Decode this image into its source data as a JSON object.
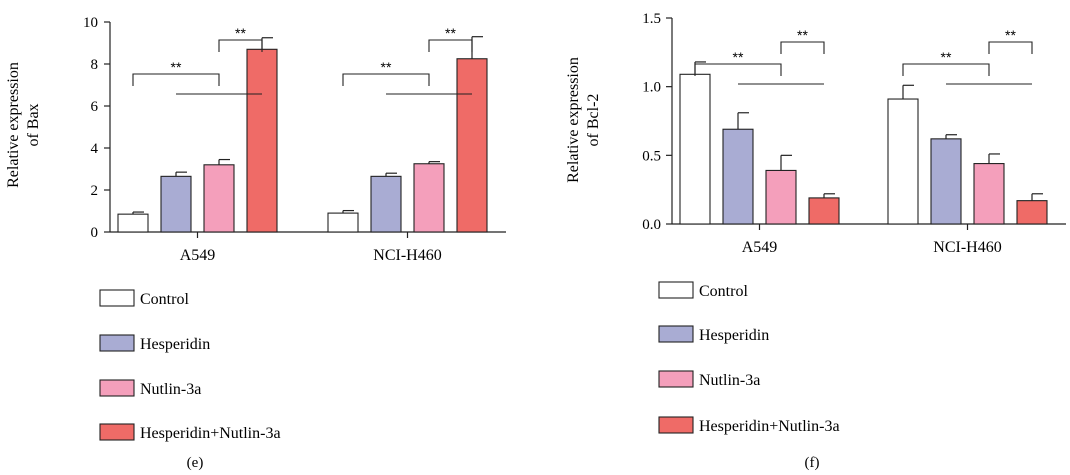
{
  "chart_data": [
    {
      "type": "bar",
      "panel_label": "(e)",
      "ylabel": "Relative expression of Bax",
      "ylabel_lines": [
        "Relative expression",
        "of Bax"
      ],
      "ylim": [
        0,
        10
      ],
      "yticks": [
        "0",
        "2",
        "4",
        "6",
        "8",
        "10"
      ],
      "categories": [
        "A549",
        "NCI-H460"
      ],
      "series": [
        {
          "name": "Control",
          "values": [
            0.85,
            0.9
          ],
          "errors": [
            0.1,
            0.12
          ],
          "color": "#ffffff"
        },
        {
          "name": "Hesperidin",
          "values": [
            2.65,
            2.65
          ],
          "errors": [
            0.2,
            0.15
          ],
          "color": "#a9acd3"
        },
        {
          "name": "Nutlin-3a",
          "values": [
            3.2,
            3.25
          ],
          "errors": [
            0.25,
            0.1
          ],
          "color": "#f49fbb"
        },
        {
          "name": "Hesperidin+Nutlin-3a",
          "values": [
            8.7,
            8.25
          ],
          "errors": [
            0.55,
            1.05
          ],
          "color": "#ef6b67"
        }
      ],
      "significance": "**",
      "legend_position": "bottom"
    },
    {
      "type": "bar",
      "panel_label": "(f)",
      "ylabel": "Relative expression of Bcl-2",
      "ylabel_lines": [
        "Relative expression",
        "of Bcl-2"
      ],
      "ylim": [
        0,
        1.5
      ],
      "yticks": [
        "0.0",
        "0.5",
        "1.0",
        "1.5"
      ],
      "categories": [
        "A549",
        "NCI-H460"
      ],
      "series": [
        {
          "name": "Control",
          "values": [
            1.09,
            0.91
          ],
          "errors": [
            0.09,
            0.1
          ],
          "color": "#ffffff"
        },
        {
          "name": "Hesperidin",
          "values": [
            0.69,
            0.62
          ],
          "errors": [
            0.12,
            0.03
          ],
          "color": "#a9acd3"
        },
        {
          "name": "Nutlin-3a",
          "values": [
            0.39,
            0.44
          ],
          "errors": [
            0.11,
            0.07
          ],
          "color": "#f49fbb"
        },
        {
          "name": "Hesperidin+Nutlin-3a",
          "values": [
            0.19,
            0.17
          ],
          "errors": [
            0.03,
            0.05
          ],
          "color": "#ef6b67"
        }
      ],
      "significance": "**",
      "legend_position": "bottom"
    }
  ]
}
